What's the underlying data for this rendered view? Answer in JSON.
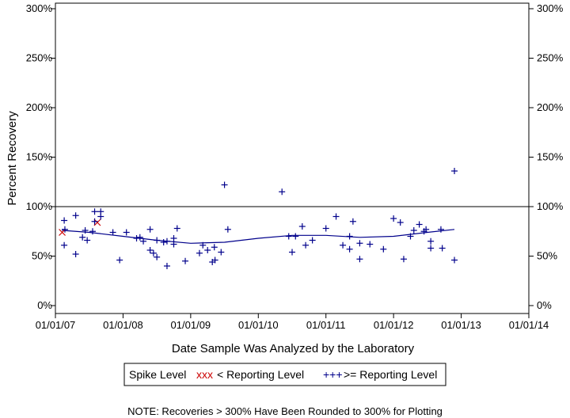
{
  "chart_data": {
    "type": "scatter",
    "xlabel": "Date Sample Was Analyzed by the Laboratory",
    "ylabel": "Percent Recovery",
    "x_ticks": [
      "01/01/07",
      "01/01/08",
      "01/01/09",
      "01/01/10",
      "01/01/11",
      "01/01/12",
      "01/01/13",
      "01/01/14"
    ],
    "xlim": [
      2007.0,
      2014.0
    ],
    "ylim": [
      0,
      300
    ],
    "y_ticks": [
      0,
      50,
      100,
      150,
      200,
      250,
      300
    ],
    "y_tick_labels": [
      "0%",
      "50%",
      "100%",
      "150%",
      "200%",
      "250%",
      "300%"
    ],
    "reference_line": 100,
    "legend": {
      "title": "Spike Level",
      "entries": [
        {
          "marker": "xxx",
          "label": "< Reporting Level",
          "color": "#cc0000"
        },
        {
          "marker": "+++",
          "label": ">= Reporting Level",
          "color": "#00008b"
        }
      ]
    },
    "note": "NOTE: Recoveries > 300% Have Been Rounded to 300% for Plotting",
    "series": [
      {
        "name": "< Reporting Level",
        "marker": "x",
        "color": "#cc0000",
        "points": [
          [
            2007.1,
            74
          ],
          [
            2007.62,
            84
          ]
        ]
      },
      {
        "name": ">= Reporting Level",
        "marker": "+",
        "color": "#00008b",
        "points": [
          [
            2007.13,
            61
          ],
          [
            2007.13,
            86
          ],
          [
            2007.14,
            77
          ],
          [
            2007.3,
            52
          ],
          [
            2007.3,
            91
          ],
          [
            2007.4,
            69
          ],
          [
            2007.44,
            76
          ],
          [
            2007.47,
            66
          ],
          [
            2007.55,
            75
          ],
          [
            2007.58,
            95
          ],
          [
            2007.67,
            95
          ],
          [
            2007.67,
            90
          ],
          [
            2007.58,
            85
          ],
          [
            2007.85,
            74
          ],
          [
            2007.95,
            46
          ],
          [
            2008.05,
            74
          ],
          [
            2008.2,
            68
          ],
          [
            2008.25,
            69
          ],
          [
            2008.3,
            65
          ],
          [
            2008.4,
            77
          ],
          [
            2008.4,
            56
          ],
          [
            2008.45,
            53
          ],
          [
            2008.5,
            49
          ],
          [
            2008.5,
            66
          ],
          [
            2008.6,
            64
          ],
          [
            2008.65,
            40
          ],
          [
            2008.65,
            65
          ],
          [
            2008.75,
            68
          ],
          [
            2008.75,
            62
          ],
          [
            2008.8,
            78
          ],
          [
            2008.92,
            45
          ],
          [
            2009.13,
            53
          ],
          [
            2009.18,
            61
          ],
          [
            2009.25,
            56
          ],
          [
            2009.32,
            44
          ],
          [
            2009.35,
            59
          ],
          [
            2009.36,
            46
          ],
          [
            2009.45,
            54
          ],
          [
            2009.5,
            122
          ],
          [
            2009.55,
            77
          ],
          [
            2010.35,
            115
          ],
          [
            2010.45,
            70
          ],
          [
            2010.5,
            54
          ],
          [
            2010.55,
            70
          ],
          [
            2010.65,
            80
          ],
          [
            2010.7,
            61
          ],
          [
            2010.8,
            66
          ],
          [
            2011.0,
            78
          ],
          [
            2011.15,
            90
          ],
          [
            2011.25,
            61
          ],
          [
            2011.35,
            57
          ],
          [
            2011.35,
            70
          ],
          [
            2011.4,
            85
          ],
          [
            2011.5,
            63
          ],
          [
            2011.5,
            47
          ],
          [
            2011.65,
            62
          ],
          [
            2011.85,
            57
          ],
          [
            2012.0,
            88
          ],
          [
            2012.1,
            84
          ],
          [
            2012.15,
            47
          ],
          [
            2012.25,
            70
          ],
          [
            2012.3,
            76
          ],
          [
            2012.38,
            82
          ],
          [
            2012.45,
            75
          ],
          [
            2012.48,
            77
          ],
          [
            2012.55,
            58
          ],
          [
            2012.55,
            65
          ],
          [
            2012.7,
            77
          ],
          [
            2012.72,
            58
          ],
          [
            2012.9,
            136
          ],
          [
            2012.9,
            46
          ]
        ]
      }
    ],
    "trend_line": [
      [
        2007.1,
        76
      ],
      [
        2007.5,
        74
      ],
      [
        2008.0,
        70
      ],
      [
        2008.5,
        66
      ],
      [
        2009.0,
        63
      ],
      [
        2009.5,
        64
      ],
      [
        2010.0,
        68
      ],
      [
        2010.5,
        71
      ],
      [
        2011.0,
        71
      ],
      [
        2011.5,
        69
      ],
      [
        2012.0,
        70
      ],
      [
        2012.5,
        74
      ],
      [
        2012.9,
        77
      ]
    ]
  }
}
